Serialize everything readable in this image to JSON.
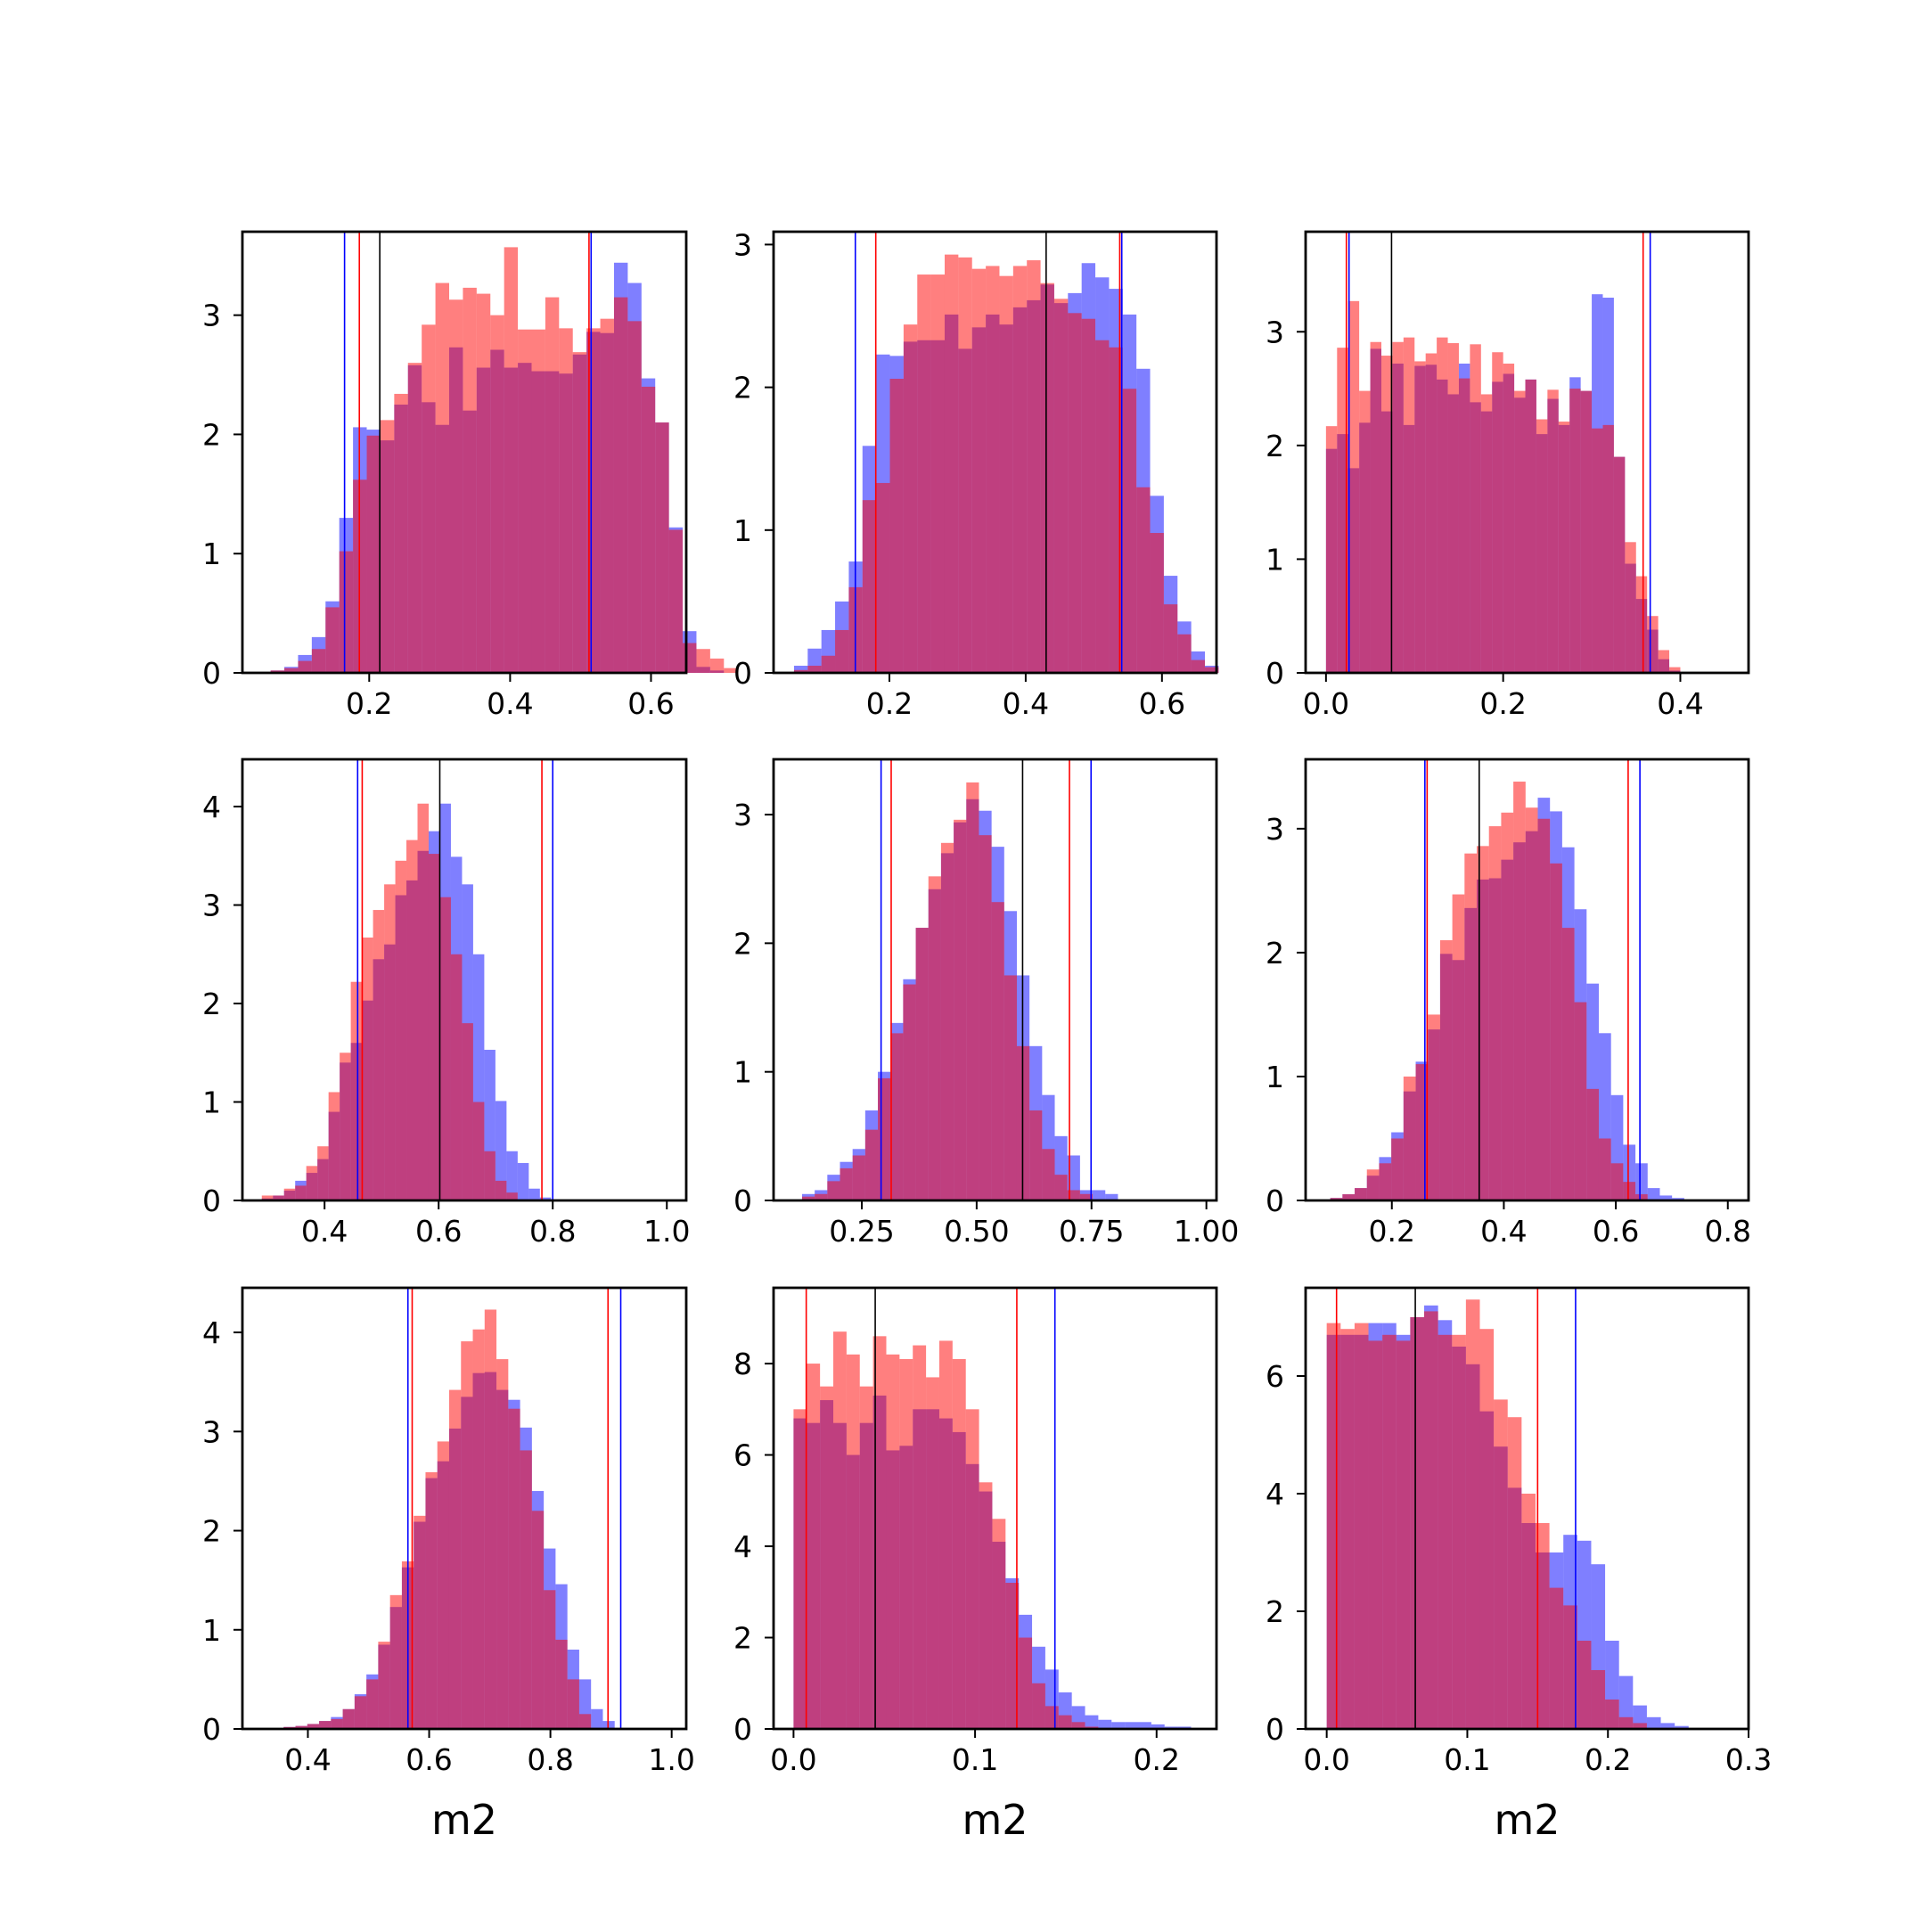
{
  "colors": {
    "blue": "#0000ff",
    "red": "#ff0000",
    "black": "#000000"
  },
  "chart_data": [
    {
      "type": "histogram",
      "xlabel": "",
      "xlim": [
        0.02,
        0.65
      ],
      "ylim": [
        0,
        3.7
      ],
      "xticks": [
        0.2,
        0.4,
        0.6
      ],
      "xtick_labels": [
        "0.2",
        "0.4",
        "0.6"
      ],
      "yticks": [
        0,
        1,
        2,
        3
      ],
      "ytick_labels": [
        "0",
        "1",
        "2",
        "3"
      ],
      "bins": {
        "start": 0.06,
        "width": 0.0195
      },
      "series": [
        {
          "color": "blue",
          "values": [
            0.02,
            0.05,
            0.15,
            0.3,
            0.6,
            1.3,
            2.06,
            2.04,
            1.95,
            2.25,
            2.58,
            2.27,
            2.08,
            2.73,
            2.2,
            2.56,
            2.71,
            2.56,
            2.6,
            2.53,
            2.53,
            2.51,
            2.67,
            2.86,
            2.85,
            3.44,
            3.27,
            2.47,
            2.1,
            1.22,
            0.35,
            0.05,
            0.02
          ]
        },
        {
          "color": "red",
          "values": [
            0.02,
            0.04,
            0.1,
            0.2,
            0.55,
            1.02,
            1.62,
            1.99,
            2.12,
            2.34,
            2.6,
            2.92,
            3.27,
            3.13,
            3.23,
            3.18,
            3.0,
            3.57,
            2.88,
            2.88,
            3.15,
            2.89,
            2.69,
            2.89,
            2.97,
            3.15,
            2.95,
            2.4,
            2.1,
            1.2,
            0.25,
            0.2,
            0.12,
            0.04
          ]
        }
      ],
      "vlines": [
        {
          "color": "blue",
          "x": 0.165
        },
        {
          "color": "red",
          "x": 0.186
        },
        {
          "color": "black",
          "x": 0.215
        },
        {
          "color": "red",
          "x": 0.512
        },
        {
          "color": "blue",
          "x": 0.515
        }
      ]
    },
    {
      "type": "histogram",
      "xlabel": "",
      "xlim": [
        0.03,
        0.68
      ],
      "ylim": [
        0,
        3.09
      ],
      "xticks": [
        0.2,
        0.4,
        0.6
      ],
      "xtick_labels": [
        "0.2",
        "0.4",
        "0.6"
      ],
      "yticks": [
        0,
        1,
        2,
        3
      ],
      "ytick_labels": [
        "0",
        "1",
        "2",
        "3"
      ],
      "bins": {
        "start": 0.06,
        "width": 0.0201
      },
      "series": [
        {
          "color": "blue",
          "values": [
            0.05,
            0.17,
            0.3,
            0.5,
            0.78,
            1.59,
            2.23,
            2.22,
            2.32,
            2.33,
            2.33,
            2.51,
            2.27,
            2.42,
            2.51,
            2.44,
            2.56,
            2.61,
            2.72,
            2.59,
            2.66,
            2.87,
            2.77,
            2.69,
            2.51,
            2.13,
            1.24,
            0.68,
            0.36,
            0.15,
            0.05
          ]
        },
        {
          "color": "red",
          "values": [
            0.02,
            0.05,
            0.12,
            0.3,
            0.6,
            1.21,
            1.33,
            2.06,
            2.44,
            2.79,
            2.79,
            2.93,
            2.91,
            2.83,
            2.85,
            2.78,
            2.85,
            2.89,
            2.73,
            2.62,
            2.52,
            2.48,
            2.33,
            2.28,
            1.99,
            1.3,
            0.98,
            0.48,
            0.27,
            0.09,
            0.04
          ]
        }
      ],
      "vlines": [
        {
          "color": "blue",
          "x": 0.15
        },
        {
          "color": "red",
          "x": 0.18
        },
        {
          "color": "black",
          "x": 0.43
        },
        {
          "color": "red",
          "x": 0.538
        },
        {
          "color": "blue",
          "x": 0.541
        }
      ]
    },
    {
      "type": "histogram",
      "xlabel": "",
      "xlim": [
        -0.023,
        0.477
      ],
      "ylim": [
        0,
        3.88
      ],
      "xticks": [
        0.0,
        0.2,
        0.4
      ],
      "xtick_labels": [
        "0.0",
        "0.2",
        "0.4"
      ],
      "yticks": [
        0,
        1,
        2,
        3
      ],
      "ytick_labels": [
        "0",
        "1",
        "2",
        "3"
      ],
      "bins": {
        "start": 0.0,
        "width": 0.0125
      },
      "series": [
        {
          "color": "blue",
          "values": [
            1.97,
            2.1,
            1.8,
            2.2,
            2.85,
            2.3,
            2.72,
            2.18,
            2.7,
            2.71,
            2.58,
            2.45,
            2.72,
            2.38,
            2.3,
            2.56,
            2.63,
            2.42,
            2.58,
            2.1,
            2.41,
            2.18,
            2.6,
            2.48,
            3.33,
            3.3,
            1.9,
            0.96,
            0.65,
            0.38,
            0.12,
            0.02
          ]
        },
        {
          "color": "red",
          "values": [
            2.17,
            2.86,
            3.27,
            2.48,
            2.91,
            2.79,
            2.91,
            2.95,
            2.74,
            2.81,
            2.95,
            2.9,
            2.59,
            2.89,
            2.45,
            2.82,
            2.72,
            2.48,
            2.58,
            2.23,
            2.49,
            2.21,
            2.5,
            2.48,
            2.15,
            2.18,
            1.9,
            1.15,
            0.85,
            0.5,
            0.2,
            0.05
          ]
        }
      ],
      "vlines": [
        {
          "color": "red",
          "x": 0.023
        },
        {
          "color": "blue",
          "x": 0.026
        },
        {
          "color": "black",
          "x": 0.074
        },
        {
          "color": "red",
          "x": 0.358
        },
        {
          "color": "blue",
          "x": 0.366
        }
      ]
    },
    {
      "type": "histogram",
      "xlabel": "",
      "xlim": [
        0.256,
        1.034
      ],
      "ylim": [
        0,
        4.48
      ],
      "xticks": [
        0.4,
        0.6,
        0.8,
        1.0
      ],
      "xtick_labels": [
        "0.4",
        "0.6",
        "0.8",
        "1.0"
      ],
      "yticks": [
        0,
        1,
        2,
        3,
        4
      ],
      "ytick_labels": [
        "0",
        "1",
        "2",
        "3",
        "4"
      ],
      "bins": {
        "start": 0.29,
        "width": 0.0195
      },
      "series": [
        {
          "color": "blue",
          "values": [
            0.02,
            0.05,
            0.1,
            0.2,
            0.28,
            0.42,
            0.9,
            1.4,
            1.6,
            2.03,
            2.45,
            2.6,
            3.1,
            3.25,
            3.55,
            3.75,
            4.03,
            3.49,
            3.21,
            2.5,
            1.53,
            1.01,
            0.5,
            0.38,
            0.12,
            0.03
          ]
        },
        {
          "color": "red",
          "values": [
            0.05,
            0.05,
            0.12,
            0.15,
            0.35,
            0.55,
            1.1,
            1.5,
            2.22,
            2.67,
            2.95,
            3.21,
            3.45,
            3.66,
            4.03,
            3.52,
            3.08,
            2.5,
            1.8,
            1.0,
            0.5,
            0.2,
            0.08
          ]
        }
      ],
      "vlines": [
        {
          "color": "blue",
          "x": 0.458
        },
        {
          "color": "red",
          "x": 0.466
        },
        {
          "color": "black",
          "x": 0.602
        },
        {
          "color": "red",
          "x": 0.781
        },
        {
          "color": "blue",
          "x": 0.8
        }
      ]
    },
    {
      "type": "histogram",
      "xlabel": "",
      "xlim": [
        0.058,
        1.022
      ],
      "ylim": [
        0,
        3.43
      ],
      "xticks": [
        0.25,
        0.5,
        0.75,
        1.0
      ],
      "xtick_labels": [
        "0.25",
        "0.50",
        "0.75",
        "1.00"
      ],
      "yticks": [
        0,
        1,
        2,
        3
      ],
      "ytick_labels": [
        "0",
        "1",
        "2",
        "3"
      ],
      "bins": {
        "start": 0.12,
        "width": 0.0275
      },
      "series": [
        {
          "color": "blue",
          "values": [
            0.05,
            0.08,
            0.2,
            0.3,
            0.4,
            0.7,
            1.0,
            1.38,
            1.72,
            2.12,
            2.42,
            2.7,
            2.94,
            3.12,
            3.03,
            2.75,
            2.25,
            1.75,
            1.2,
            0.82,
            0.5,
            0.35,
            0.08,
            0.08,
            0.05
          ]
        },
        {
          "color": "red",
          "values": [
            0.03,
            0.05,
            0.15,
            0.25,
            0.35,
            0.55,
            0.95,
            1.3,
            1.68,
            2.12,
            2.52,
            2.78,
            2.96,
            3.25,
            2.84,
            2.32,
            1.75,
            1.2,
            0.7,
            0.4,
            0.2,
            0.08,
            0.05
          ]
        }
      ],
      "vlines": [
        {
          "color": "blue",
          "x": 0.292
        },
        {
          "color": "red",
          "x": 0.314
        },
        {
          "color": "black",
          "x": 0.6
        },
        {
          "color": "red",
          "x": 0.702
        },
        {
          "color": "blue",
          "x": 0.749
        }
      ]
    },
    {
      "type": "histogram",
      "xlabel": "",
      "xlim": [
        0.046,
        0.837
      ],
      "ylim": [
        0,
        3.56
      ],
      "xticks": [
        0.2,
        0.4,
        0.6,
        0.8
      ],
      "xtick_labels": [
        "0.2",
        "0.4",
        "0.6",
        "0.8"
      ],
      "yticks": [
        0,
        1,
        2,
        3
      ],
      "ytick_labels": [
        "0",
        "1",
        "2",
        "3"
      ],
      "bins": {
        "start": 0.09,
        "width": 0.0218
      },
      "series": [
        {
          "color": "blue",
          "values": [
            0.02,
            0.05,
            0.1,
            0.2,
            0.35,
            0.55,
            0.88,
            1.12,
            1.38,
            1.99,
            1.94,
            2.36,
            2.59,
            2.6,
            2.75,
            2.89,
            2.98,
            3.25,
            3.14,
            2.85,
            2.35,
            1.75,
            1.35,
            0.85,
            0.45,
            0.3,
            0.1,
            0.04,
            0.02
          ]
        },
        {
          "color": "red",
          "values": [
            0.02,
            0.05,
            0.1,
            0.25,
            0.3,
            0.5,
            1.0,
            1.1,
            1.5,
            2.1,
            2.47,
            2.8,
            2.86,
            3.02,
            3.13,
            3.38,
            3.17,
            3.08,
            2.72,
            2.2,
            1.6,
            0.9,
            0.5,
            0.3,
            0.15,
            0.05
          ]
        }
      ],
      "vlines": [
        {
          "color": "blue",
          "x": 0.259
        },
        {
          "color": "red",
          "x": 0.263
        },
        {
          "color": "black",
          "x": 0.356
        },
        {
          "color": "red",
          "x": 0.622
        },
        {
          "color": "blue",
          "x": 0.643
        }
      ]
    },
    {
      "type": "histogram",
      "xlabel": "m2",
      "xlim": [
        0.292,
        1.024
      ],
      "ylim": [
        0,
        4.45
      ],
      "xticks": [
        0.4,
        0.6,
        0.8,
        1.0
      ],
      "xtick_labels": [
        "0.4",
        "0.6",
        "0.8",
        "1.0"
      ],
      "yticks": [
        0,
        1,
        2,
        3,
        4
      ],
      "ytick_labels": [
        "0",
        "1",
        "2",
        "3",
        "4"
      ],
      "bins": {
        "start": 0.36,
        "width": 0.0195
      },
      "series": [
        {
          "color": "blue",
          "values": [
            0.02,
            0.03,
            0.05,
            0.08,
            0.12,
            0.2,
            0.35,
            0.55,
            0.85,
            1.23,
            1.63,
            2.09,
            2.53,
            2.7,
            3.03,
            3.35,
            3.59,
            3.6,
            3.42,
            3.32,
            3.04,
            2.4,
            1.82,
            1.46,
            0.8,
            0.5,
            0.2,
            0.08
          ]
        },
        {
          "color": "red",
          "values": [
            0.02,
            0.03,
            0.05,
            0.08,
            0.1,
            0.2,
            0.33,
            0.5,
            0.88,
            1.35,
            1.69,
            2.15,
            2.59,
            2.9,
            3.42,
            3.91,
            4.03,
            4.23,
            3.73,
            3.23,
            2.81,
            2.2,
            1.4,
            0.9,
            0.5,
            0.15
          ]
        }
      ],
      "vlines": [
        {
          "color": "blue",
          "x": 0.565
        },
        {
          "color": "red",
          "x": 0.572
        },
        {
          "color": "red",
          "x": 0.895
        },
        {
          "color": "blue",
          "x": 0.916
        }
      ]
    },
    {
      "type": "histogram",
      "xlabel": "m2",
      "xlim": [
        -0.011,
        0.233
      ],
      "ylim": [
        0,
        9.66
      ],
      "xticks": [
        0.0,
        0.1,
        0.2
      ],
      "xtick_labels": [
        "0.0",
        "0.1",
        "0.2"
      ],
      "yticks": [
        0,
        2,
        4,
        6,
        8
      ],
      "ytick_labels": [
        "0",
        "2",
        "4",
        "6",
        "8"
      ],
      "bins": {
        "start": 0.0,
        "width": 0.0073
      },
      "series": [
        {
          "color": "blue",
          "values": [
            6.8,
            6.7,
            7.2,
            6.7,
            6.0,
            6.7,
            7.3,
            6.1,
            6.2,
            7.0,
            7.0,
            6.8,
            6.5,
            5.8,
            5.2,
            4.1,
            3.3,
            2.5,
            1.8,
            1.3,
            0.8,
            0.5,
            0.3,
            0.2,
            0.15,
            0.15,
            0.15,
            0.1,
            0.05,
            0.05,
            0.02
          ]
        },
        {
          "color": "red",
          "values": [
            7.0,
            8.0,
            7.5,
            8.7,
            8.2,
            7.5,
            8.6,
            8.2,
            8.1,
            8.4,
            7.7,
            8.5,
            8.1,
            7.0,
            5.4,
            4.6,
            3.2,
            2.0,
            1.0,
            0.5,
            0.3,
            0.15,
            0.05
          ]
        }
      ],
      "vlines": [
        {
          "color": "red",
          "x": 0.007
        },
        {
          "color": "black",
          "x": 0.045
        },
        {
          "color": "red",
          "x": 0.123
        },
        {
          "color": "blue",
          "x": 0.144
        }
      ]
    },
    {
      "type": "histogram",
      "xlabel": "m2",
      "xlim": [
        -0.015,
        0.3
      ],
      "ylim": [
        0,
        7.5
      ],
      "xticks": [
        0.0,
        0.1,
        0.2,
        0.3
      ],
      "xtick_labels": [
        "0.0",
        "0.1",
        "0.2",
        "0.3"
      ],
      "yticks": [
        0,
        2,
        4,
        6
      ],
      "ytick_labels": [
        "0",
        "2",
        "4",
        "6"
      ],
      "bins": {
        "start": 0.0,
        "width": 0.0099
      },
      "series": [
        {
          "color": "blue",
          "values": [
            6.7,
            6.7,
            6.7,
            6.9,
            6.9,
            6.7,
            7.0,
            7.2,
            6.95,
            6.5,
            6.2,
            5.4,
            4.8,
            4.1,
            3.5,
            3.0,
            3.0,
            3.3,
            3.2,
            2.8,
            1.5,
            0.9,
            0.4,
            0.2,
            0.1,
            0.05
          ]
        },
        {
          "color": "red",
          "values": [
            6.9,
            6.8,
            6.9,
            6.6,
            6.7,
            6.6,
            7.0,
            7.1,
            6.7,
            6.7,
            7.3,
            6.8,
            5.6,
            5.3,
            4.0,
            3.5,
            2.4,
            2.1,
            1.5,
            1.0,
            0.5,
            0.2,
            0.1
          ]
        }
      ],
      "vlines": [
        {
          "color": "red",
          "x": 0.007
        },
        {
          "color": "black",
          "x": 0.063
        },
        {
          "color": "red",
          "x": 0.15
        },
        {
          "color": "blue",
          "x": 0.177
        }
      ]
    }
  ]
}
